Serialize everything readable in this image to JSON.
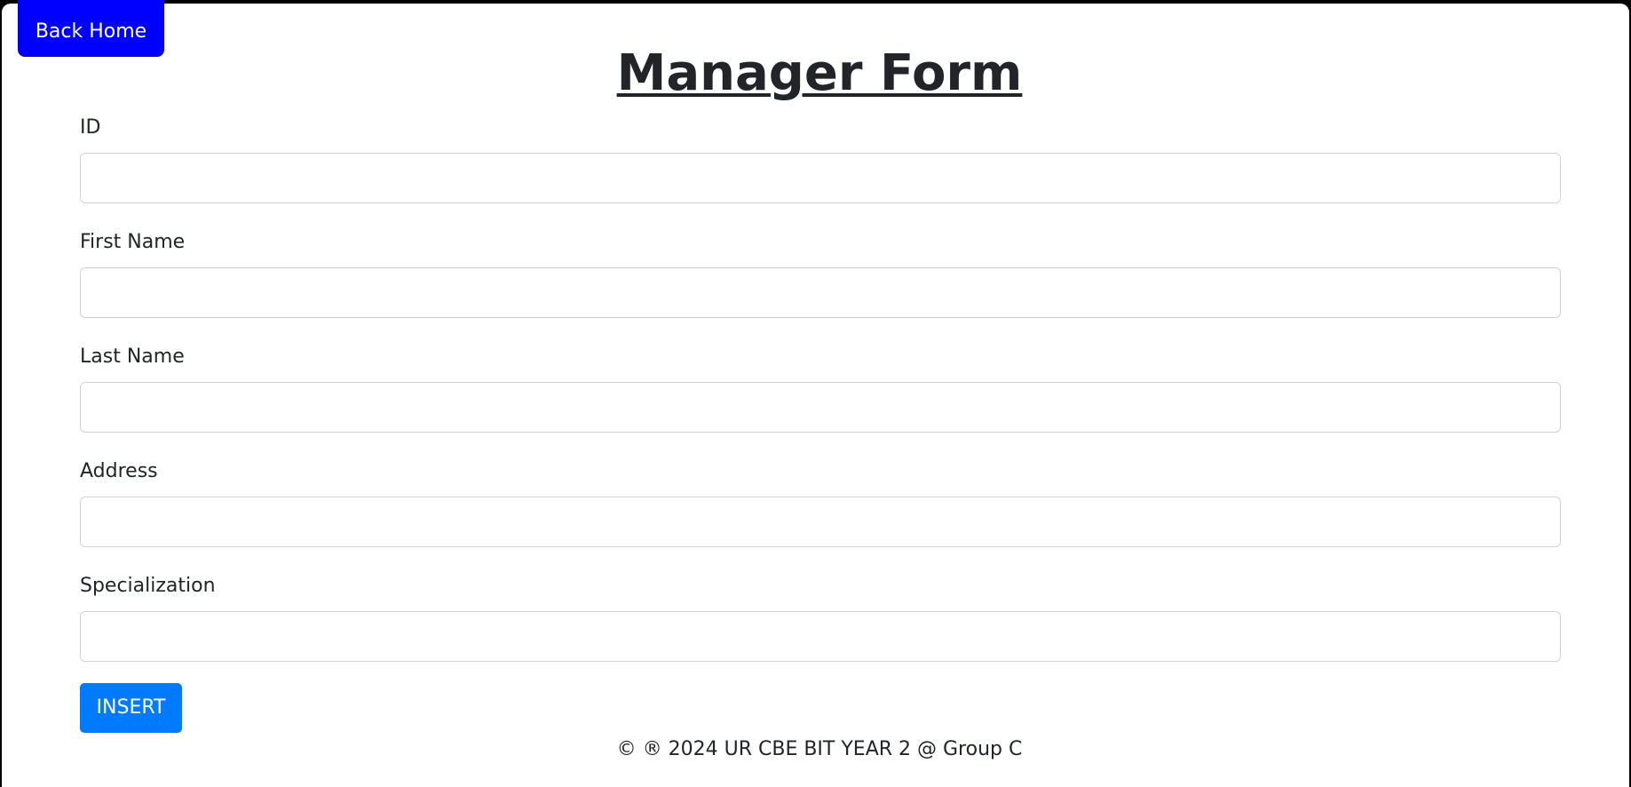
{
  "nav": {
    "back_home_label": "Back Home"
  },
  "form": {
    "title": "Manager Form",
    "fields": [
      {
        "label": "ID",
        "value": "",
        "placeholder": ""
      },
      {
        "label": "First Name",
        "value": "",
        "placeholder": ""
      },
      {
        "label": "Last Name",
        "value": "",
        "placeholder": ""
      },
      {
        "label": "Address",
        "value": "",
        "placeholder": ""
      },
      {
        "label": "Specialization",
        "value": "",
        "placeholder": ""
      }
    ],
    "submit_label": "INSERT"
  },
  "footer": {
    "text": "© ® 2024 UR CBE BIT YEAR 2 @ Group C"
  },
  "colors": {
    "back_button_bg": "#0000ff",
    "insert_button_bg": "#007bff",
    "text": "#212529",
    "input_border": "#ced4da"
  }
}
